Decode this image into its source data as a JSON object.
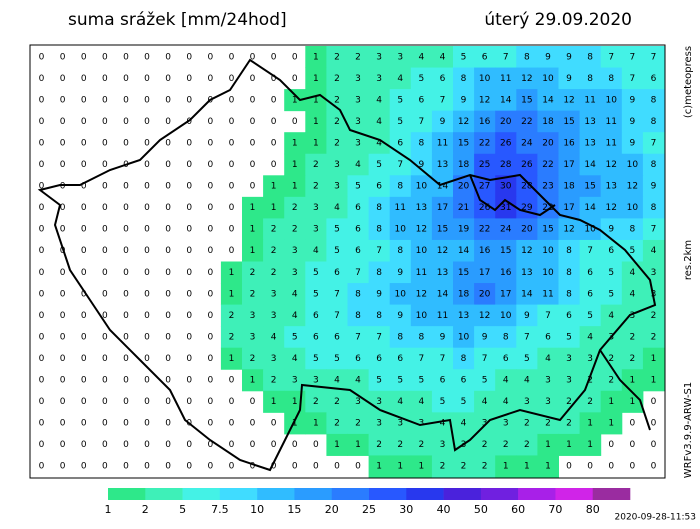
{
  "header": {
    "title": "suma srážek [mm/24hod]",
    "date": "úterý 29.09.2020"
  },
  "side_labels": {
    "copyright": "(c)meteopress",
    "resolution": "res.2km",
    "model": "WRFv3.9.9-ARW-S1"
  },
  "footer": {
    "timestamp": "2020-09-28-11:53"
  },
  "legend": {
    "values": [
      1,
      2,
      5,
      7.5,
      10,
      15,
      20,
      25,
      30,
      40,
      50,
      60,
      70,
      80
    ],
    "colors": [
      "#2ee88a",
      "#3ef0b8",
      "#44f2e6",
      "#40dcff",
      "#30bcff",
      "#2a9cff",
      "#2a7cff",
      "#2858ff",
      "#2838ee",
      "#4a22dc",
      "#7020e0",
      "#a820e8",
      "#d024e8",
      "#9a2ca0"
    ]
  },
  "grid": {
    "rows": [
      [
        0,
        0,
        0,
        0,
        0,
        0,
        0,
        0,
        0,
        0,
        0,
        0,
        0,
        1,
        2,
        2,
        3,
        3,
        4,
        4,
        5,
        6,
        7,
        8,
        9,
        9,
        8,
        7,
        7,
        7
      ],
      [
        0,
        0,
        0,
        0,
        0,
        0,
        0,
        0,
        0,
        0,
        0,
        0,
        0,
        1,
        2,
        3,
        3,
        4,
        5,
        6,
        8,
        10,
        11,
        12,
        10,
        9,
        8,
        8,
        7,
        6
      ],
      [
        0,
        0,
        0,
        0,
        0,
        0,
        0,
        0,
        0,
        0,
        0,
        0,
        1,
        1,
        2,
        3,
        4,
        5,
        6,
        7,
        9,
        12,
        14,
        15,
        14,
        12,
        11,
        10,
        9,
        8
      ],
      [
        0,
        0,
        0,
        0,
        0,
        0,
        0,
        0,
        0,
        0,
        0,
        0,
        0,
        1,
        2,
        3,
        4,
        5,
        7,
        9,
        12,
        16,
        20,
        22,
        18,
        15,
        13,
        11,
        9,
        8
      ],
      [
        0,
        0,
        0,
        0,
        0,
        0,
        0,
        0,
        0,
        0,
        0,
        0,
        1,
        1,
        2,
        3,
        4,
        6,
        8,
        11,
        15,
        22,
        26,
        24,
        20,
        16,
        13,
        11,
        9,
        7
      ],
      [
        0,
        0,
        0,
        0,
        0,
        0,
        0,
        0,
        0,
        0,
        0,
        0,
        1,
        2,
        3,
        4,
        5,
        7,
        9,
        13,
        18,
        25,
        28,
        26,
        22,
        17,
        14,
        12,
        10,
        8
      ],
      [
        0,
        0,
        0,
        0,
        0,
        0,
        0,
        0,
        0,
        0,
        0,
        1,
        1,
        2,
        3,
        5,
        6,
        8,
        10,
        14,
        20,
        27,
        30,
        28,
        23,
        18,
        15,
        13,
        12,
        9
      ],
      [
        0,
        0,
        0,
        0,
        0,
        0,
        0,
        0,
        0,
        0,
        1,
        1,
        2,
        3,
        4,
        6,
        8,
        11,
        13,
        17,
        21,
        26,
        31,
        29,
        22,
        17,
        14,
        12,
        10,
        8
      ],
      [
        0,
        0,
        0,
        0,
        0,
        0,
        0,
        0,
        0,
        0,
        1,
        2,
        2,
        3,
        5,
        6,
        8,
        10,
        12,
        15,
        19,
        22,
        24,
        20,
        15,
        12,
        10,
        9,
        8,
        7
      ],
      [
        0,
        0,
        0,
        0,
        0,
        0,
        0,
        0,
        0,
        0,
        1,
        2,
        3,
        4,
        5,
        6,
        7,
        8,
        10,
        12,
        14,
        16,
        15,
        12,
        10,
        8,
        7,
        6,
        5,
        4
      ],
      [
        0,
        0,
        0,
        0,
        0,
        0,
        0,
        0,
        0,
        1,
        2,
        2,
        3,
        5,
        6,
        7,
        8,
        9,
        11,
        13,
        15,
        17,
        16,
        13,
        10,
        8,
        6,
        5,
        4,
        3
      ],
      [
        0,
        0,
        0,
        0,
        0,
        0,
        0,
        0,
        0,
        1,
        2,
        3,
        4,
        5,
        7,
        8,
        9,
        10,
        12,
        14,
        18,
        20,
        17,
        14,
        11,
        8,
        6,
        5,
        4,
        3
      ],
      [
        0,
        0,
        0,
        0,
        0,
        0,
        0,
        0,
        0,
        2,
        3,
        3,
        4,
        6,
        7,
        8,
        8,
        9,
        10,
        11,
        13,
        12,
        10,
        9,
        7,
        6,
        5,
        4,
        3,
        2
      ],
      [
        0,
        0,
        0,
        0,
        0,
        0,
        0,
        0,
        0,
        2,
        3,
        4,
        5,
        6,
        6,
        7,
        7,
        8,
        8,
        9,
        10,
        9,
        8,
        7,
        6,
        5,
        4,
        3,
        2,
        2
      ],
      [
        0,
        0,
        0,
        0,
        0,
        0,
        0,
        0,
        0,
        1,
        2,
        3,
        4,
        5,
        5,
        6,
        6,
        6,
        7,
        7,
        8,
        7,
        6,
        5,
        4,
        3,
        3,
        2,
        2,
        1
      ],
      [
        0,
        0,
        0,
        0,
        0,
        0,
        0,
        0,
        0,
        0,
        1,
        2,
        3,
        3,
        4,
        4,
        5,
        5,
        5,
        6,
        6,
        5,
        4,
        4,
        3,
        3,
        2,
        2,
        1,
        1
      ],
      [
        0,
        0,
        0,
        0,
        0,
        0,
        0,
        0,
        0,
        0,
        0,
        1,
        1,
        2,
        2,
        3,
        3,
        4,
        4,
        5,
        5,
        4,
        4,
        3,
        3,
        2,
        2,
        1,
        1,
        0
      ],
      [
        0,
        0,
        0,
        0,
        0,
        0,
        0,
        0,
        0,
        0,
        0,
        0,
        1,
        1,
        2,
        2,
        3,
        3,
        3,
        4,
        4,
        3,
        3,
        2,
        2,
        2,
        1,
        1,
        0,
        0
      ],
      [
        0,
        0,
        0,
        0,
        0,
        0,
        0,
        0,
        0,
        0,
        0,
        0,
        0,
        0,
        1,
        1,
        2,
        2,
        2,
        3,
        3,
        2,
        2,
        2,
        1,
        1,
        1,
        0,
        0,
        0
      ],
      [
        0,
        0,
        0,
        0,
        0,
        0,
        0,
        0,
        0,
        0,
        0,
        0,
        0,
        0,
        0,
        0,
        1,
        1,
        1,
        2,
        2,
        2,
        1,
        1,
        1,
        0,
        0,
        0,
        0,
        0
      ]
    ]
  }
}
